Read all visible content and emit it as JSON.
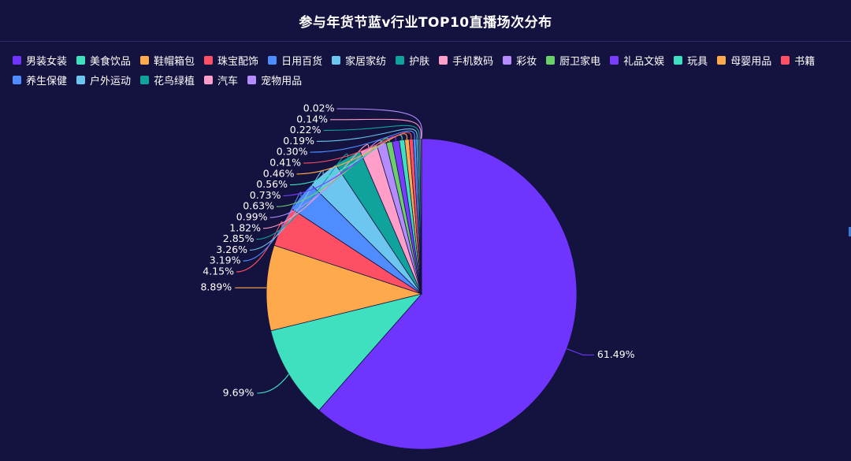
{
  "chart_data": {
    "type": "pie",
    "title": "参与年货节蓝v行业TOP10直播场次分布",
    "categories": [
      "男装女装",
      "美食饮品",
      "鞋帽箱包",
      "珠宝配饰",
      "日用百货",
      "家居家纺",
      "护肤",
      "手机数码",
      "彩妆",
      "厨卫家电",
      "礼品文娱",
      "玩具",
      "母婴用品",
      "书籍",
      "养生保健",
      "户外运动",
      "花鸟绿植",
      "汽车",
      "宠物用品"
    ],
    "values": [
      61.49,
      9.69,
      8.89,
      4.15,
      3.19,
      3.26,
      2.85,
      1.82,
      0.99,
      0.63,
      0.73,
      0.56,
      0.46,
      0.41,
      0.3,
      0.19,
      0.22,
      0.14,
      0.02
    ],
    "labels": [
      "61.49%",
      "9.69%",
      "8.89%",
      "4.15%",
      "3.19%",
      "3.26%",
      "2.85%",
      "1.82%",
      "0.99%",
      "0.63%",
      "0.73%",
      "0.56%",
      "0.46%",
      "0.41%",
      "0.30%",
      "0.19%",
      "0.22%",
      "0.14%",
      "0.02%"
    ],
    "colors": [
      "#6f35ff",
      "#3ee0c0",
      "#ffa94d",
      "#ff4f64",
      "#4f8cff",
      "#6cc6f0",
      "#0fa39b",
      "#ff9ec8",
      "#b48cff",
      "#6cd06a",
      "#7a3cff",
      "#3ee0c0",
      "#ffa94d",
      "#ff4f64",
      "#4f8cff",
      "#6cc6f0",
      "#0fa39b",
      "#ff9ec8",
      "#b48cff"
    ],
    "start_angle": "12 o'clock, clockwise",
    "legend_position": "top-left"
  }
}
